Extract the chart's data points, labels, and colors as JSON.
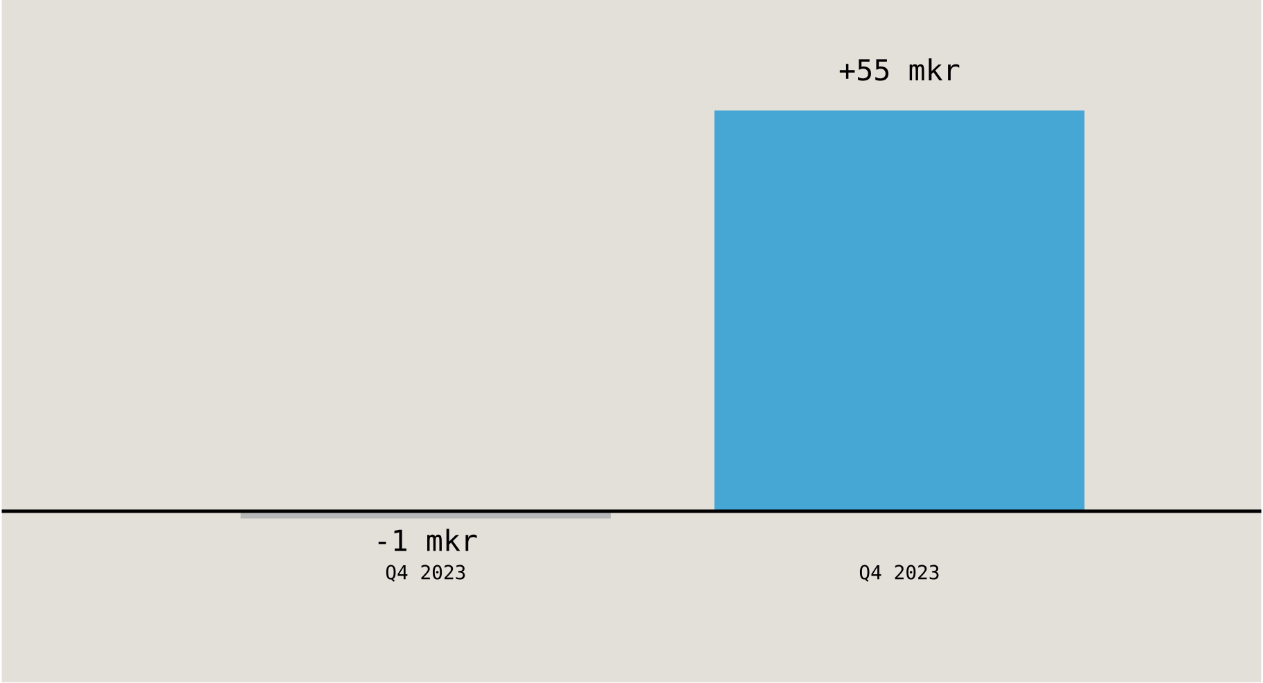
{
  "chart_data": {
    "type": "bar",
    "categories": [
      "Q4 2023",
      "Q4 2023"
    ],
    "values": [
      -1,
      55
    ],
    "colors": [
      "#b6b7b8",
      "#46a7d5"
    ],
    "value_labels": [
      "-1 mkr",
      "+55 mkr"
    ]
  }
}
